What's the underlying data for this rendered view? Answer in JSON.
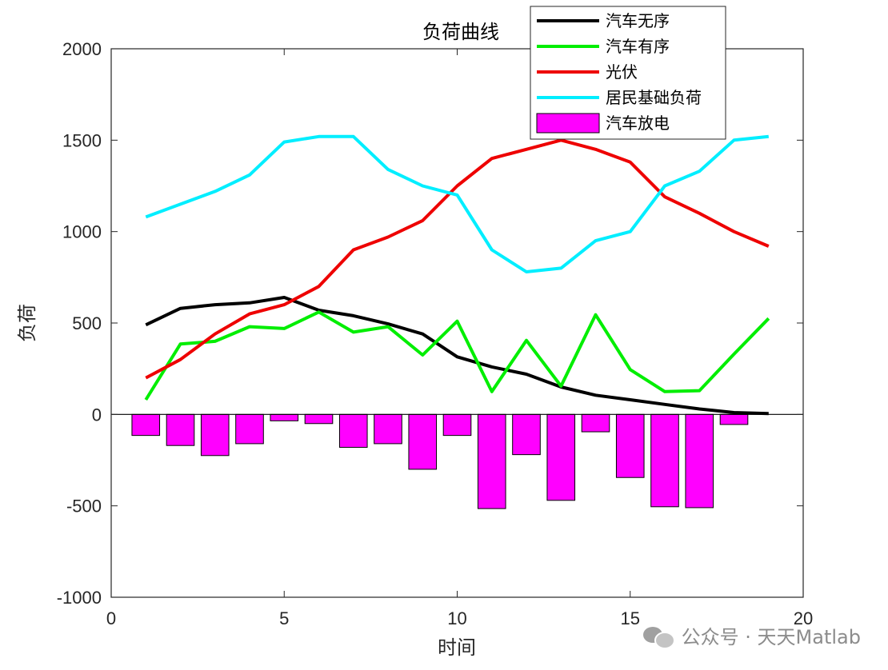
{
  "chart_data": {
    "type": "bar+line",
    "title": "负荷曲线",
    "xlabel": "时间",
    "ylabel": "负荷",
    "xlim": [
      0,
      20
    ],
    "ylim": [
      -1000,
      2000
    ],
    "xticks": [
      0,
      5,
      10,
      15,
      20
    ],
    "yticks": [
      -1000,
      -500,
      0,
      500,
      1000,
      1500,
      2000
    ],
    "x": [
      1,
      2,
      3,
      4,
      5,
      6,
      7,
      8,
      9,
      10,
      11,
      12,
      13,
      14,
      15,
      16,
      17,
      18,
      19
    ],
    "legend_position": "top-right",
    "grid": false,
    "series": [
      {
        "name": "汽车无序",
        "kind": "line",
        "color": "#000000",
        "values": [
          490,
          580,
          600,
          610,
          640,
          570,
          540,
          495,
          440,
          315,
          260,
          220,
          150,
          105,
          80,
          55,
          30,
          10,
          5
        ]
      },
      {
        "name": "汽车有序",
        "kind": "line",
        "color": "#00ee00",
        "values": [
          80,
          385,
          400,
          480,
          470,
          560,
          450,
          480,
          325,
          510,
          125,
          405,
          155,
          545,
          245,
          125,
          130,
          330,
          525
        ]
      },
      {
        "name": "光伏",
        "kind": "line",
        "color": "#ee0000",
        "values": [
          200,
          300,
          440,
          550,
          600,
          700,
          900,
          970,
          1060,
          1250,
          1400,
          1450,
          1500,
          1450,
          1380,
          1190,
          1100,
          1000,
          920
        ]
      },
      {
        "name": "居民基础负荷",
        "kind": "line",
        "color": "#00eeff",
        "values": [
          1080,
          1150,
          1220,
          1310,
          1490,
          1520,
          1520,
          1340,
          1250,
          1200,
          900,
          780,
          800,
          950,
          1000,
          1250,
          1330,
          1500,
          1520
        ]
      },
      {
        "name": "汽车放电",
        "kind": "bar",
        "color": "#ff00ff",
        "values": [
          -115,
          -170,
          -225,
          -160,
          -35,
          -50,
          -180,
          -160,
          -300,
          -115,
          -515,
          -220,
          -470,
          -95,
          -345,
          -505,
          -510,
          -55,
          0
        ]
      }
    ]
  },
  "watermark": {
    "text": "公众号 · 天天Matlab",
    "icon": "wechat-icon"
  }
}
